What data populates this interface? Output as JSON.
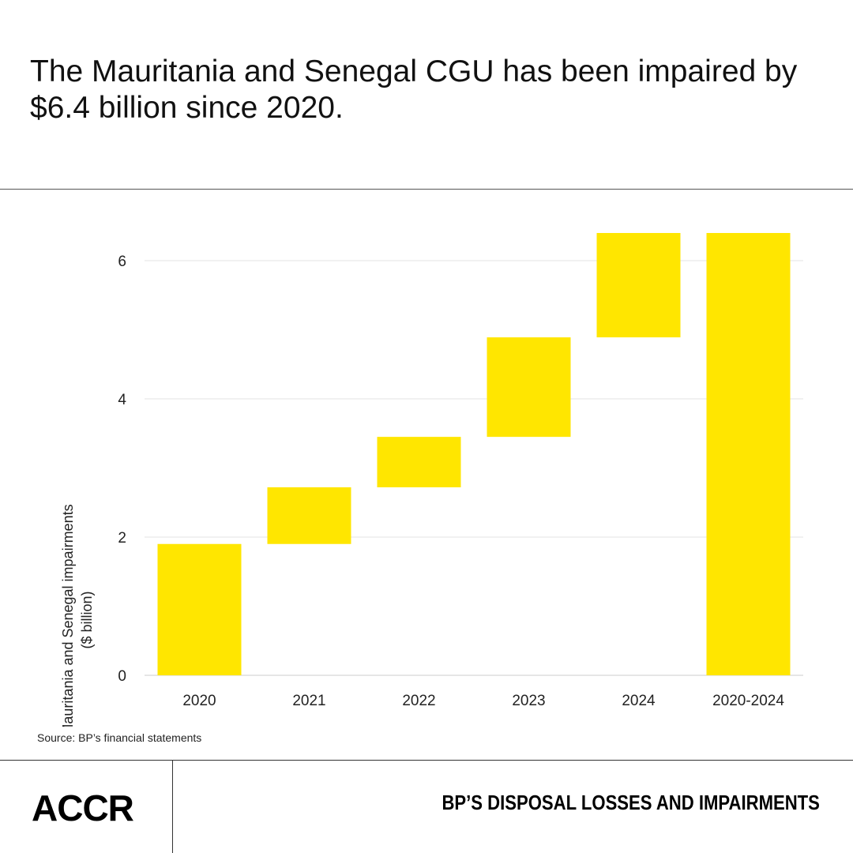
{
  "header": {
    "title": "The Mauritania and Senegal CGU has been impaired by $6.4 billion since 2020."
  },
  "chart_data": {
    "type": "waterfall",
    "title": "",
    "xlabel": "",
    "ylabel": "Mauritania and Senegal impairments ($ billion)",
    "ylabel_lines": [
      "Mauritania and Senegal impairments",
      "($ billion)"
    ],
    "categories": [
      "2020",
      "2021",
      "2022",
      "2023",
      "2024",
      "2020-2024"
    ],
    "bars": [
      {
        "category": "2020",
        "start": 0,
        "end": 1.9
      },
      {
        "category": "2021",
        "start": 1.9,
        "end": 2.72
      },
      {
        "category": "2022",
        "start": 2.72,
        "end": 3.45
      },
      {
        "category": "2023",
        "start": 3.45,
        "end": 4.89
      },
      {
        "category": "2024",
        "start": 4.89,
        "end": 6.4
      },
      {
        "category": "2020-2024",
        "start": 0,
        "end": 6.4
      }
    ],
    "ylim": [
      0,
      7
    ],
    "yticks": [
      0,
      2,
      4,
      6
    ],
    "grid": true,
    "bar_color": "#FFE600"
  },
  "source": "Source: BP’s financial statements",
  "footer": {
    "logo": "ACCR",
    "title": "BP’S DISPOSAL LOSSES AND IMPAIRMENTS"
  }
}
